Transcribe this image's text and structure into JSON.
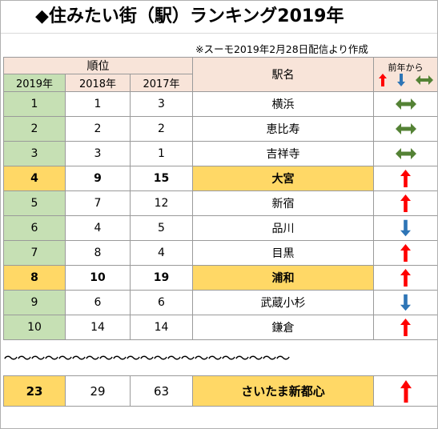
{
  "title": "◆住みたい街（駅）ランキング2019年",
  "note": "※スーモ2019年2月28日配信より作成",
  "headers": {
    "rank": "順位",
    "y2019": "2019年",
    "y2018": "2018年",
    "y2017": "2017年",
    "station": "駅名",
    "change": "前年から"
  },
  "colors": {
    "up": "#ff0000",
    "down": "#2e75b6",
    "same": "#548235",
    "highlight": "#ffd866",
    "rank_bg": "#c6e0b4",
    "header_bg": "#f8e4d9"
  },
  "rows": [
    {
      "r2019": "1",
      "r2018": "1",
      "r2017": "3",
      "name": "横浜",
      "change": "same",
      "highlight": false
    },
    {
      "r2019": "2",
      "r2018": "2",
      "r2017": "2",
      "name": "恵比寿",
      "change": "same",
      "highlight": false
    },
    {
      "r2019": "3",
      "r2018": "3",
      "r2017": "1",
      "name": "吉祥寺",
      "change": "same",
      "highlight": false
    },
    {
      "r2019": "4",
      "r2018": "9",
      "r2017": "15",
      "name": "大宮",
      "change": "up",
      "highlight": true
    },
    {
      "r2019": "5",
      "r2018": "7",
      "r2017": "12",
      "name": "新宿",
      "change": "up",
      "highlight": false
    },
    {
      "r2019": "6",
      "r2018": "4",
      "r2017": "5",
      "name": "品川",
      "change": "down",
      "highlight": false
    },
    {
      "r2019": "7",
      "r2018": "8",
      "r2017": "4",
      "name": "目黒",
      "change": "up",
      "highlight": false
    },
    {
      "r2019": "8",
      "r2018": "10",
      "r2017": "19",
      "name": "浦和",
      "change": "up",
      "highlight": true
    },
    {
      "r2019": "9",
      "r2018": "6",
      "r2017": "6",
      "name": "武蔵小杉",
      "change": "down",
      "highlight": false
    },
    {
      "r2019": "10",
      "r2018": "14",
      "r2017": "14",
      "name": "鎌倉",
      "change": "up",
      "highlight": false
    }
  ],
  "wave": "～～～～～～～～～～～～～～～～～～～～～",
  "last_row": {
    "r2019": "23",
    "r2018": "29",
    "r2017": "63",
    "name": "さいたま新都心",
    "change": "up"
  }
}
